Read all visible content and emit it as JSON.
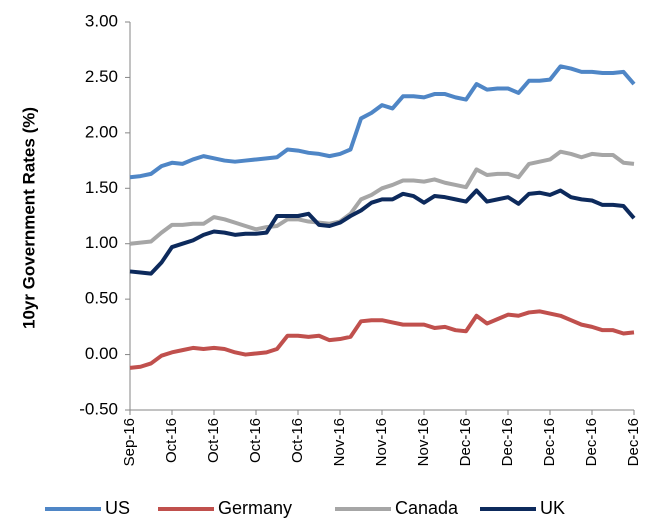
{
  "chart_data": {
    "type": "line",
    "y_label": "10yr Government Rates (%)",
    "categories": [
      "Sep-16",
      null,
      null,
      null,
      "Oct-16",
      null,
      null,
      null,
      "Oct-16",
      null,
      null,
      null,
      "Oct-16",
      null,
      null,
      null,
      "Oct-16",
      null,
      null,
      null,
      "Nov-16",
      null,
      null,
      null,
      "Nov-16",
      null,
      null,
      null,
      "Nov-16",
      null,
      null,
      null,
      "Dec-16",
      null,
      null,
      null,
      "Dec-16",
      null,
      null,
      null,
      "Dec-16",
      null,
      null,
      null,
      "Dec-16",
      null,
      null,
      null,
      "Dec-16"
    ],
    "series": [
      {
        "name": "US",
        "color": "#4f86c6",
        "values": [
          1.6,
          1.61,
          1.63,
          1.7,
          1.73,
          1.72,
          1.76,
          1.79,
          1.77,
          1.75,
          1.74,
          1.75,
          1.76,
          1.77,
          1.78,
          1.85,
          1.84,
          1.82,
          1.81,
          1.79,
          1.81,
          1.85,
          2.13,
          2.18,
          2.25,
          2.22,
          2.33,
          2.33,
          2.32,
          2.35,
          2.35,
          2.32,
          2.3,
          2.44,
          2.39,
          2.4,
          2.4,
          2.36,
          2.47,
          2.47,
          2.48,
          2.6,
          2.58,
          2.55,
          2.55,
          2.54,
          2.54,
          2.55,
          2.44
        ]
      },
      {
        "name": "Germany",
        "color": "#c0504d",
        "values": [
          -0.12,
          -0.11,
          -0.08,
          -0.01,
          0.02,
          0.04,
          0.06,
          0.05,
          0.06,
          0.05,
          0.02,
          0.0,
          0.01,
          0.02,
          0.05,
          0.17,
          0.17,
          0.16,
          0.17,
          0.13,
          0.14,
          0.16,
          0.3,
          0.31,
          0.31,
          0.29,
          0.27,
          0.27,
          0.27,
          0.24,
          0.25,
          0.22,
          0.21,
          0.35,
          0.28,
          0.32,
          0.36,
          0.35,
          0.38,
          0.39,
          0.37,
          0.35,
          0.31,
          0.27,
          0.25,
          0.22,
          0.22,
          0.19,
          0.2
        ]
      },
      {
        "name": "Canada",
        "color": "#a6a6a6",
        "values": [
          1.0,
          1.01,
          1.02,
          1.1,
          1.17,
          1.17,
          1.18,
          1.18,
          1.24,
          1.22,
          1.19,
          1.16,
          1.13,
          1.15,
          1.16,
          1.22,
          1.22,
          1.2,
          1.19,
          1.18,
          1.2,
          1.27,
          1.4,
          1.44,
          1.5,
          1.53,
          1.57,
          1.57,
          1.56,
          1.58,
          1.55,
          1.53,
          1.51,
          1.67,
          1.62,
          1.63,
          1.63,
          1.6,
          1.72,
          1.74,
          1.76,
          1.83,
          1.81,
          1.78,
          1.81,
          1.8,
          1.8,
          1.73,
          1.72
        ]
      },
      {
        "name": "UK",
        "color": "#0d2a5c",
        "values": [
          0.75,
          0.74,
          0.73,
          0.83,
          0.97,
          1.0,
          1.03,
          1.08,
          1.11,
          1.1,
          1.08,
          1.09,
          1.09,
          1.1,
          1.25,
          1.25,
          1.25,
          1.27,
          1.17,
          1.16,
          1.19,
          1.25,
          1.3,
          1.37,
          1.4,
          1.4,
          1.45,
          1.43,
          1.37,
          1.43,
          1.42,
          1.4,
          1.38,
          1.48,
          1.38,
          1.4,
          1.42,
          1.36,
          1.45,
          1.46,
          1.44,
          1.48,
          1.42,
          1.4,
          1.39,
          1.35,
          1.35,
          1.34,
          1.23
        ]
      }
    ],
    "ylim": [
      -0.5,
      3.0
    ],
    "yticks": [
      {
        "value": -0.5,
        "label": "-0.50"
      },
      {
        "value": 0,
        "label": "0.00"
      },
      {
        "value": 0.5,
        "label": "0.50"
      },
      {
        "value": 1,
        "label": "1.00"
      },
      {
        "value": 1.5,
        "label": "1.50"
      },
      {
        "value": 2,
        "label": "2.00"
      },
      {
        "value": 2.5,
        "label": "2.50"
      },
      {
        "value": 3,
        "label": "3.00"
      }
    ],
    "legend": "bottom"
  }
}
